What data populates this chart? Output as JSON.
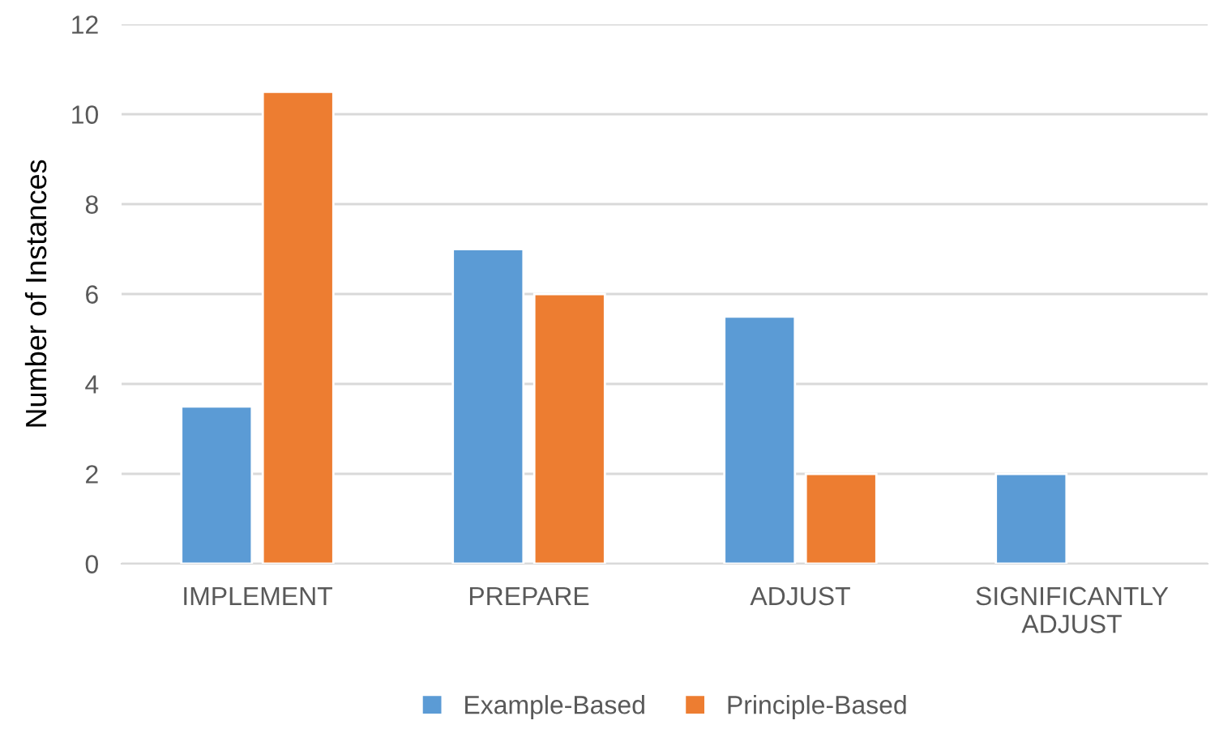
{
  "chart_data": {
    "type": "bar",
    "ylabel": "Number of Instances",
    "categories": [
      "IMPLEMENT",
      "PREPARE",
      "ADJUST",
      "SIGNIFICANTLY ADJUST"
    ],
    "series": [
      {
        "name": "Example-Based",
        "color": "#5b9bd5",
        "values": [
          3.5,
          7,
          5.5,
          2
        ]
      },
      {
        "name": "Principle-Based",
        "color": "#ed7d31",
        "values": [
          10.5,
          6,
          2,
          null
        ]
      }
    ],
    "ylim": [
      0,
      12
    ],
    "yticks": [
      0,
      2,
      4,
      6,
      8,
      10,
      12
    ],
    "grid": "y",
    "legend": "bottom"
  }
}
